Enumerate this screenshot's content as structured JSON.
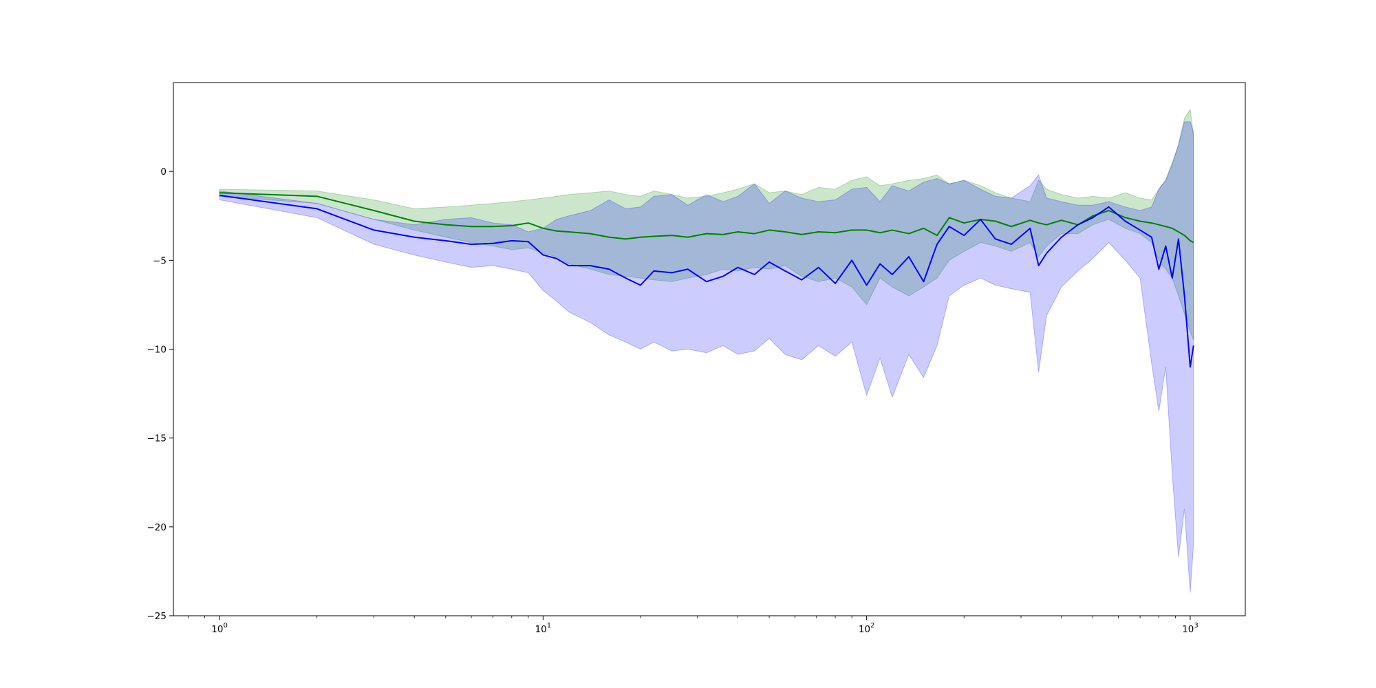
{
  "chart_data": {
    "type": "line",
    "title": "",
    "xlabel": "",
    "ylabel": "",
    "xscale": "log",
    "xlim": [
      0.72,
      1480
    ],
    "ylim": [
      -25,
      5
    ],
    "grid": false,
    "legend": "none",
    "x_ticks": [
      {
        "base": "10",
        "exp": "0",
        "value": 1
      },
      {
        "base": "10",
        "exp": "1",
        "value": 10
      },
      {
        "base": "10",
        "exp": "2",
        "value": 100
      },
      {
        "base": "10",
        "exp": "3",
        "value": 1000
      }
    ],
    "y_ticks": [
      {
        "label": "0",
        "value": 0
      },
      {
        "label": "−5",
        "value": -5
      },
      {
        "label": "−10",
        "value": -10
      },
      {
        "label": "−15",
        "value": -15
      },
      {
        "label": "−20",
        "value": -20
      },
      {
        "label": "−25",
        "value": -25
      }
    ],
    "x": [
      1,
      2,
      3,
      4,
      5,
      6,
      7,
      8,
      9,
      10,
      11,
      12,
      14,
      16,
      18,
      20,
      22,
      25,
      28,
      32,
      36,
      40,
      45,
      50,
      56,
      63,
      71,
      80,
      90,
      100,
      110,
      120,
      135,
      150,
      165,
      180,
      200,
      225,
      250,
      280,
      320,
      340,
      360,
      400,
      450,
      500,
      560,
      630,
      700,
      760,
      800,
      840,
      880,
      920,
      960,
      1000,
      1024
    ],
    "series": [
      {
        "color": "#008000",
        "band_color": "#008000",
        "band_opacity": 0.2,
        "values": [
          -1.2,
          -1.4,
          -2.2,
          -2.8,
          -3.0,
          -3.1,
          -3.1,
          -3.05,
          -2.9,
          -3.2,
          -3.35,
          -3.4,
          -3.5,
          -3.7,
          -3.8,
          -3.7,
          -3.65,
          -3.6,
          -3.7,
          -3.5,
          -3.55,
          -3.4,
          -3.5,
          -3.3,
          -3.4,
          -3.55,
          -3.4,
          -3.45,
          -3.3,
          -3.3,
          -3.45,
          -3.3,
          -3.5,
          -3.2,
          -3.6,
          -2.6,
          -2.9,
          -2.7,
          -2.8,
          -3.1,
          -2.75,
          -2.9,
          -3.0,
          -2.75,
          -3.0,
          -2.5,
          -2.2,
          -2.6,
          -2.8,
          -2.9,
          -3.0,
          -3.1,
          -3.2,
          -3.4,
          -3.6,
          -3.9,
          -4.0
        ],
        "band_upper": [
          -1.0,
          -1.1,
          -1.6,
          -2.1,
          -2.0,
          -1.9,
          -1.8,
          -1.7,
          -1.6,
          -1.5,
          -1.4,
          -1.3,
          -1.2,
          -1.1,
          -1.3,
          -1.4,
          -1.1,
          -1.3,
          -1.5,
          -1.4,
          -1.2,
          -1.0,
          -0.7,
          -1.2,
          -1.1,
          -1.3,
          -0.9,
          -1.0,
          -0.5,
          -0.3,
          -0.8,
          -0.7,
          -0.5,
          -0.4,
          -0.2,
          -0.7,
          -0.5,
          -0.8,
          -1.2,
          -1.5,
          -1.7,
          -0.5,
          -1.0,
          -1.3,
          -1.5,
          -1.4,
          -1.5,
          -1.2,
          -1.5,
          -1.6,
          -1.0,
          -0.5,
          0.5,
          1.5,
          3.0,
          3.5,
          2.0
        ],
        "band_lower": [
          -1.4,
          -1.8,
          -2.7,
          -3.3,
          -3.7,
          -4.0,
          -4.2,
          -4.4,
          -4.3,
          -4.6,
          -4.8,
          -5.2,
          -5.5,
          -5.8,
          -5.9,
          -6.0,
          -6.1,
          -6.2,
          -6.0,
          -5.8,
          -5.5,
          -5.6,
          -5.4,
          -5.5,
          -5.3,
          -5.9,
          -6.2,
          -6.0,
          -6.5,
          -7.5,
          -6.0,
          -6.5,
          -7.0,
          -6.5,
          -6.0,
          -5.0,
          -4.5,
          -4.0,
          -4.2,
          -4.5,
          -4.0,
          -4.8,
          -4.2,
          -3.5,
          -3.5,
          -3.0,
          -2.7,
          -3.2,
          -3.5,
          -4.0,
          -5.0,
          -5.5,
          -6.0,
          -7.0,
          -8.0,
          -9.0,
          -9.5
        ]
      },
      {
        "color": "#0000ff",
        "band_color": "#0000ff",
        "band_opacity": 0.2,
        "values": [
          -1.35,
          -2.1,
          -3.3,
          -3.7,
          -3.9,
          -4.1,
          -4.05,
          -3.9,
          -3.95,
          -4.7,
          -4.9,
          -5.3,
          -5.3,
          -5.5,
          -6.0,
          -6.4,
          -5.6,
          -5.7,
          -5.5,
          -6.2,
          -5.9,
          -5.4,
          -5.8,
          -5.1,
          -5.6,
          -6.1,
          -5.4,
          -6.3,
          -5.0,
          -6.4,
          -5.2,
          -5.8,
          -4.8,
          -6.2,
          -4.1,
          -3.1,
          -3.6,
          -2.7,
          -3.8,
          -4.1,
          -3.2,
          -5.3,
          -4.6,
          -3.7,
          -3.0,
          -2.6,
          -2.0,
          -2.8,
          -3.3,
          -3.7,
          -5.5,
          -4.2,
          -6.0,
          -3.8,
          -7.0,
          -11.0,
          -9.8
        ],
        "band_upper": [
          -1.1,
          -1.8,
          -2.7,
          -3.0,
          -2.7,
          -2.6,
          -2.9,
          -3.0,
          -3.4,
          -3.2,
          -2.7,
          -2.5,
          -2.2,
          -1.6,
          -2.1,
          -2.0,
          -1.4,
          -1.3,
          -1.9,
          -1.3,
          -1.7,
          -1.4,
          -0.7,
          -1.8,
          -1.1,
          -1.5,
          -1.7,
          -1.6,
          -1.0,
          -0.9,
          -1.7,
          -0.8,
          -1.1,
          -0.6,
          -0.4,
          -0.7,
          -0.5,
          -1.0,
          -1.4,
          -1.5,
          -0.8,
          -0.2,
          -1.5,
          -1.7,
          -1.9,
          -1.9,
          -1.7,
          -2.0,
          -2.2,
          -2.0,
          -1.0,
          -0.5,
          0.4,
          1.5,
          2.8,
          2.8,
          2.2
        ],
        "band_lower": [
          -1.6,
          -2.6,
          -4.1,
          -4.7,
          -5.1,
          -5.4,
          -5.3,
          -5.5,
          -5.7,
          -6.7,
          -7.3,
          -7.9,
          -8.5,
          -9.2,
          -9.6,
          -10.0,
          -9.6,
          -10.1,
          -10.0,
          -10.2,
          -9.8,
          -10.3,
          -10.1,
          -9.4,
          -10.3,
          -10.6,
          -9.8,
          -10.4,
          -9.6,
          -12.6,
          -10.5,
          -12.7,
          -10.3,
          -11.6,
          -9.8,
          -7.0,
          -6.4,
          -6.0,
          -6.4,
          -6.6,
          -6.8,
          -11.3,
          -8.1,
          -6.5,
          -5.6,
          -4.9,
          -4.0,
          -5.0,
          -6.0,
          -10.8,
          -13.5,
          -11.0,
          -17.0,
          -21.7,
          -19.0,
          -23.7,
          -21.0
        ]
      }
    ]
  }
}
